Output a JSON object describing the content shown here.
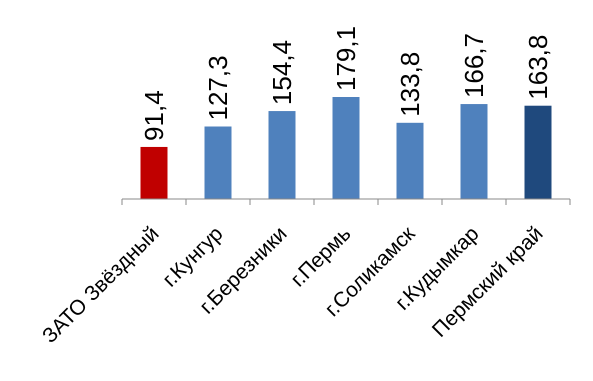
{
  "chart_data": {
    "type": "bar",
    "categories": [
      "ЗАТО Звёздный",
      "г.Кунгур",
      "г.Березники",
      "г.Пермь",
      "г.Соликамск",
      "г.Кудымкар",
      "Пермский край"
    ],
    "values": [
      91.4,
      127.3,
      154.4,
      179.1,
      133.8,
      166.7,
      163.8
    ],
    "value_labels": [
      "91,4",
      "127,3",
      "154,4",
      "179,1",
      "133,8",
      "166,7",
      "163,8"
    ],
    "bar_colors": [
      "#C00000",
      "#4F81BD",
      "#4F81BD",
      "#4F81BD",
      "#4F81BD",
      "#4F81BD",
      "#1F497D"
    ],
    "ylim": [
      0,
      200
    ],
    "grid": false,
    "legend": "none"
  }
}
